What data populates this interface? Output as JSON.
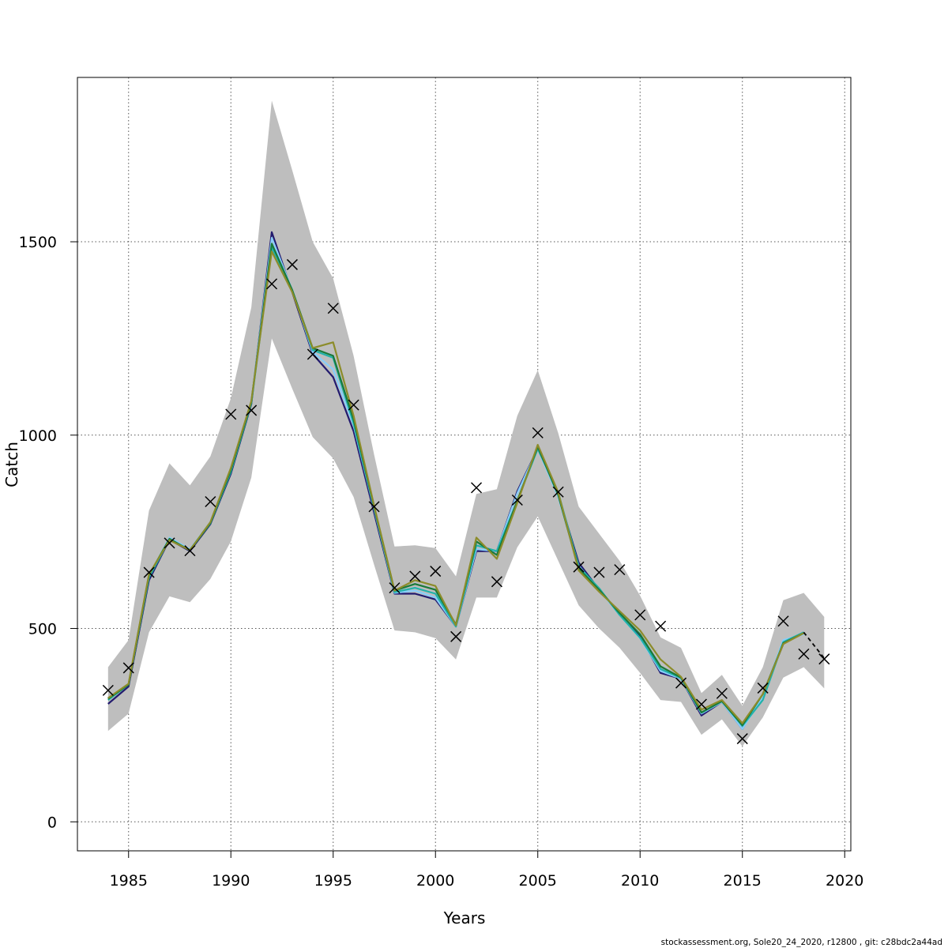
{
  "footer": "stockassessment.org, Sole20_24_2020, r12800 , git: c28bdc2a44ad",
  "chart_data": {
    "type": "line",
    "title": "",
    "xlabel": "Years",
    "ylabel": "Catch",
    "xlim": [
      1982.5,
      2020.3
    ],
    "ylim": [
      -75,
      1925
    ],
    "xticks": [
      1985,
      1990,
      1995,
      2000,
      2005,
      2010,
      2015,
      2020
    ],
    "yticks": [
      0,
      500,
      1000,
      1500
    ],
    "grid": true,
    "legend": "none",
    "x": [
      1984,
      1985,
      1986,
      1987,
      1988,
      1989,
      1990,
      1991,
      1992,
      1993,
      1994,
      1995,
      1996,
      1997,
      1998,
      1999,
      2000,
      2001,
      2002,
      2003,
      2004,
      2005,
      2006,
      2007,
      2008,
      2009,
      2010,
      2011,
      2012,
      2013,
      2014,
      2015,
      2016,
      2017,
      2018,
      2019
    ],
    "band": {
      "color": "#bebebe",
      "lower": [
        235,
        280,
        490,
        583,
        568,
        628,
        725,
        890,
        1250,
        1120,
        995,
        940,
        840,
        665,
        495,
        490,
        475,
        420,
        580,
        580,
        710,
        790,
        675,
        560,
        500,
        450,
        385,
        315,
        310,
        225,
        265,
        195,
        270,
        373,
        400,
        345
      ],
      "upper": [
        400,
        470,
        805,
        927,
        870,
        945,
        1095,
        1330,
        1865,
        1685,
        1500,
        1405,
        1205,
        950,
        712,
        715,
        708,
        635,
        848,
        860,
        1050,
        1168,
        1005,
        815,
        745,
        675,
        585,
        477,
        450,
        333,
        380,
        300,
        400,
        573,
        592,
        530
      ]
    },
    "observed": {
      "marker": "x",
      "x": [
        1984,
        1985,
        1986,
        1987,
        1988,
        1989,
        1990,
        1991,
        1992,
        1993,
        1994,
        1995,
        1996,
        1997,
        1998,
        1999,
        2000,
        2001,
        2002,
        2003,
        2004,
        2005,
        2006,
        2007,
        2008,
        2009,
        2010,
        2011,
        2012,
        2013,
        2014,
        2015,
        2016,
        2017,
        2018,
        2019
      ],
      "values": [
        340,
        398,
        645,
        721,
        701,
        828,
        1054,
        1064,
        1391,
        1441,
        1209,
        1328,
        1078,
        815,
        605,
        635,
        648,
        479,
        864,
        621,
        832,
        1006,
        853,
        659,
        645,
        652,
        535,
        506,
        359,
        304,
        332,
        215,
        346,
        519,
        434,
        421
      ]
    },
    "series": [
      {
        "color": "#221a6e",
        "values": [
          305,
          350,
          625,
          730,
          700,
          770,
          900,
          1080,
          1525,
          1370,
          1210,
          1150,
          1010,
          800,
          590,
          590,
          575,
          505,
          700,
          700,
          855,
          965,
          845,
          670,
          600,
          540,
          480,
          385,
          370,
          275,
          310,
          240,
          330,
          460,
          490,
          null
        ]
      },
      {
        "color": "#87cefa",
        "values": [
          320,
          355,
          635,
          735,
          705,
          775,
          910,
          1085,
          1510,
          1375,
          1215,
          1170,
          1025,
          810,
          592,
          598,
          580,
          505,
          705,
          700,
          850,
          965,
          840,
          662,
          600,
          535,
          475,
          390,
          370,
          280,
          310,
          240,
          325,
          470,
          485,
          null
        ]
      },
      {
        "color": "#20b2aa",
        "values": [
          315,
          355,
          632,
          730,
          703,
          772,
          905,
          1082,
          1485,
          1375,
          1220,
          1200,
          1030,
          812,
          594,
          605,
          590,
          505,
          715,
          700,
          830,
          965,
          852,
          660,
          604,
          535,
          476,
          395,
          372,
          282,
          312,
          248,
          315,
          465,
          490,
          null
        ]
      },
      {
        "color": "#1a7a3a",
        "values": [
          318,
          355,
          638,
          732,
          702,
          773,
          910,
          1085,
          1495,
          1375,
          1225,
          1205,
          1040,
          815,
          598,
          615,
          600,
          510,
          725,
          690,
          830,
          970,
          845,
          655,
          600,
          540,
          485,
          402,
          373,
          283,
          312,
          250,
          330,
          462,
          488,
          null
        ]
      },
      {
        "color": "#8c8c2a",
        "values": [
          320,
          357,
          640,
          728,
          703,
          775,
          915,
          1088,
          1475,
          1370,
          1225,
          1240,
          1050,
          818,
          598,
          625,
          610,
          508,
          735,
          680,
          825,
          975,
          852,
          650,
          595,
          545,
          495,
          420,
          375,
          290,
          315,
          255,
          330,
          460,
          488,
          null
        ]
      },
      {
        "color": "#000000",
        "dashed": true,
        "values": [
          null,
          null,
          null,
          null,
          null,
          null,
          null,
          null,
          null,
          null,
          null,
          null,
          null,
          null,
          null,
          null,
          null,
          null,
          null,
          null,
          null,
          null,
          null,
          null,
          null,
          null,
          null,
          null,
          null,
          null,
          null,
          null,
          null,
          null,
          490,
          423
        ]
      }
    ]
  }
}
